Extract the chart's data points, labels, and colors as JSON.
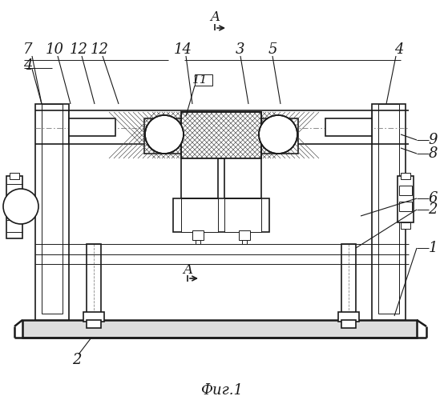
{
  "bg_color": "#ffffff",
  "line_color": "#1a1a1a",
  "title": "Фиг.1",
  "figsize": [
    5.54,
    5.0
  ],
  "dpi": 100
}
